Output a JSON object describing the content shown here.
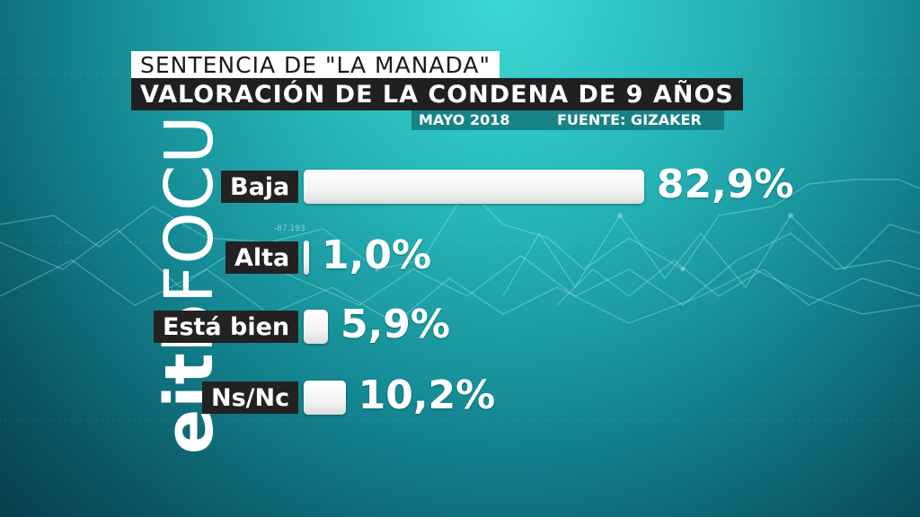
{
  "logo": {
    "part1": "eitb",
    "part2": "FOCUS"
  },
  "header": {
    "title_line1": "SENTENCIA DE \"LA MANADA\"",
    "title_line2": "VALORACIÓN DE LA CONDENA DE 9 AÑOS",
    "date": "MAYO 2018",
    "source": "FUENTE: GIZAKER"
  },
  "background": {
    "ticker_text": "-87.193"
  },
  "colors": {
    "bar": "#ffffff",
    "label_background": "#222222",
    "background_light": "#3ed8d4",
    "background_dark": "#083f4c"
  },
  "chart_data": {
    "type": "bar",
    "orientation": "horizontal",
    "title": "VALORACIÓN DE LA CONDENA DE 9 AÑOS",
    "categories": [
      "Baja",
      "Alta",
      "Está bien",
      "Ns/Nc"
    ],
    "values": [
      82.9,
      1.0,
      5.9,
      10.2
    ],
    "value_labels": [
      "82,9%",
      "1,0%",
      "5,9%",
      "10,2%"
    ],
    "unit": "%",
    "xlim": [
      0,
      100
    ],
    "grid": false,
    "legend": "none"
  }
}
